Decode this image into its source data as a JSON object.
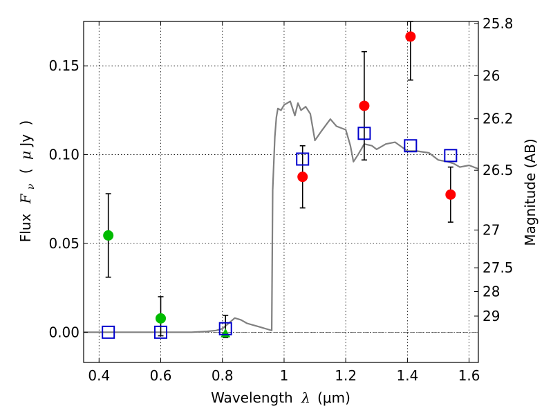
{
  "chart_data": {
    "type": "scatter",
    "xlabel": "Wavelength λ (μm)",
    "ylabel": "Flux F_ν ( μJy )",
    "ylabel_parts": {
      "prefix": "Flux",
      "symbol": "F",
      "subscript": "ν",
      "open": "(",
      "mu": "μ",
      "unit": "Jy",
      "close": ")"
    },
    "xlabel_parts": {
      "prefix": "Wavelength",
      "symbol": "λ",
      "unit": "(μm)"
    },
    "y2label": "Magnitude (AB)",
    "xlim": [
      0.35,
      1.63
    ],
    "ylim": [
      -0.017,
      0.175
    ],
    "xticks": [
      0.4,
      0.6,
      0.8,
      1.0,
      1.2,
      1.4,
      1.6
    ],
    "xtick_labels": [
      "0.4",
      "0.6",
      "0.8",
      "1",
      "1.2",
      "1.4",
      "1.6"
    ],
    "yticks": [
      0.0,
      0.05,
      0.1,
      0.15
    ],
    "ytick_labels": [
      "0.00",
      "0.05",
      "0.10",
      "0.15"
    ],
    "y2_ticks": [
      {
        "label": "25.8",
        "flux": 0.1738
      },
      {
        "label": "26",
        "flux": 0.1445
      },
      {
        "label": "26.2",
        "flux": 0.1202
      },
      {
        "label": "26.5",
        "flux": 0.0912
      },
      {
        "label": "27",
        "flux": 0.0575
      },
      {
        "label": "27.5",
        "flux": 0.0363
      },
      {
        "label": "28",
        "flux": 0.0229
      },
      {
        "label": "29",
        "flux": 0.0091
      }
    ],
    "grid": true,
    "model_sed": {
      "name": "model SED",
      "color": "#808080",
      "x": [
        0.35,
        0.7,
        0.75,
        0.78,
        0.8,
        0.82,
        0.84,
        0.86,
        0.88,
        0.9,
        0.92,
        0.95,
        0.96,
        0.963,
        0.97,
        0.975,
        0.98,
        0.99,
        1.0,
        1.02,
        1.035,
        1.045,
        1.055,
        1.07,
        1.085,
        1.1,
        1.12,
        1.15,
        1.17,
        1.2,
        1.215,
        1.225,
        1.24,
        1.26,
        1.285,
        1.3,
        1.33,
        1.36,
        1.4,
        1.43,
        1.47,
        1.5,
        1.53,
        1.55,
        1.57,
        1.6,
        1.63
      ],
      "y": [
        0.0,
        0.0,
        0.0005,
        0.001,
        0.002,
        0.005,
        0.008,
        0.007,
        0.005,
        0.004,
        0.003,
        0.0015,
        0.001,
        0.08,
        0.11,
        0.121,
        0.126,
        0.125,
        0.128,
        0.13,
        0.122,
        0.129,
        0.125,
        0.127,
        0.123,
        0.108,
        0.113,
        0.12,
        0.116,
        0.114,
        0.105,
        0.096,
        0.1,
        0.106,
        0.105,
        0.103,
        0.106,
        0.107,
        0.102,
        0.102,
        0.101,
        0.097,
        0.096,
        0.095,
        0.093,
        0.094,
        0.092
      ]
    },
    "series": [
      {
        "name": "observed",
        "color": "#ff0000",
        "marker": "circle",
        "x": [
          1.06,
          1.26,
          1.41,
          1.54
        ],
        "y": [
          0.0875,
          0.1275,
          0.1665,
          0.0775
        ],
        "yerr_low": [
          0.07,
          0.097,
          0.142,
          0.062
        ],
        "yerr_high": [
          0.105,
          0.158,
          0.175,
          0.093
        ]
      },
      {
        "name": "observed (green)",
        "color": "#00bb00",
        "marker": "circle",
        "x": [
          0.43,
          0.6
        ],
        "y": [
          0.0545,
          0.0078
        ],
        "yerr_low": [
          0.031,
          -0.002
        ],
        "yerr_high": [
          0.078,
          0.02
        ]
      },
      {
        "name": "observed (green triangle)",
        "color": "#00bb00",
        "marker": "triangle",
        "x": [
          0.81
        ],
        "y": [
          -0.0005
        ],
        "yerr_low": [
          -0.003
        ],
        "yerr_high": [
          0.0095
        ]
      },
      {
        "name": "model fluxes",
        "color": "#0000cc",
        "marker": "square",
        "x": [
          0.43,
          0.6,
          0.81,
          1.06,
          1.26,
          1.41,
          1.54
        ],
        "y": [
          0.0,
          0.0,
          0.002,
          0.0975,
          0.112,
          0.105,
          0.0995
        ]
      }
    ]
  }
}
